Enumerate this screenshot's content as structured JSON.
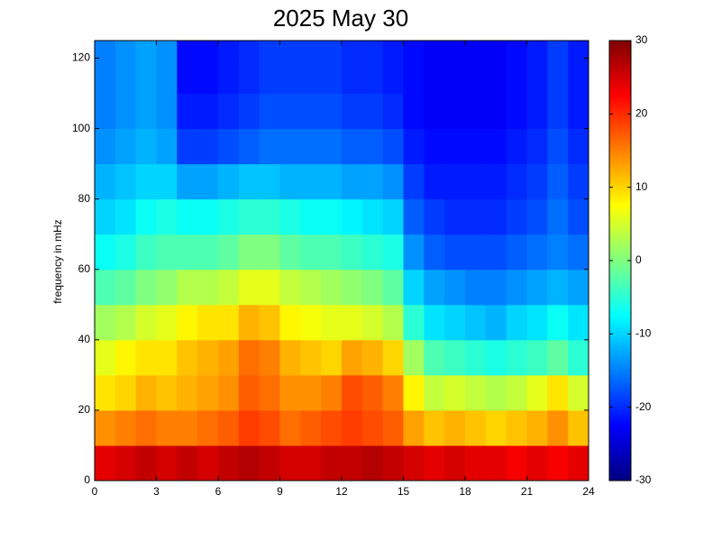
{
  "chart_data": {
    "type": "heatmap",
    "title": "2025 May 30",
    "y_label": "frequency in mHz",
    "xbins": [
      0,
      1,
      2,
      3,
      4,
      5,
      6,
      7,
      8,
      9,
      10,
      11,
      12,
      13,
      14,
      15,
      16,
      17,
      18,
      19,
      20,
      21,
      22,
      23,
      24
    ],
    "ybins": [
      0,
      10,
      20,
      30,
      40,
      50,
      60,
      70,
      80,
      90,
      100,
      110,
      120,
      125
    ],
    "values": [
      [
        24,
        25,
        26,
        25,
        26,
        25,
        26,
        27,
        26,
        25,
        25,
        26,
        26,
        27,
        26,
        25,
        24,
        25,
        24,
        24,
        23,
        24,
        23,
        24
      ],
      [
        14,
        15,
        16,
        15,
        15,
        16,
        17,
        19,
        18,
        16,
        17,
        18,
        19,
        18,
        17,
        13,
        11,
        12,
        11,
        10,
        11,
        12,
        14,
        11
      ],
      [
        9,
        10,
        12,
        11,
        12,
        13,
        14,
        17,
        16,
        14,
        14,
        15,
        18,
        17,
        15,
        8,
        4,
        5,
        4,
        3,
        4,
        6,
        9,
        5
      ],
      [
        6,
        8,
        9,
        9,
        11,
        12,
        13,
        16,
        15,
        12,
        11,
        10,
        13,
        12,
        10,
        2,
        -3,
        -4,
        -5,
        -6,
        -5,
        -4,
        -2,
        -5
      ],
      [
        2,
        3,
        5,
        6,
        8,
        9,
        9,
        12,
        11,
        8,
        7,
        6,
        6,
        5,
        3,
        -5,
        -9,
        -10,
        -11,
        -12,
        -10,
        -9,
        -7,
        -9
      ],
      [
        -3,
        -2,
        0,
        1,
        3,
        3,
        4,
        6,
        6,
        4,
        3,
        2,
        1,
        0,
        -2,
        -10,
        -13,
        -14,
        -15,
        -15,
        -14,
        -13,
        -12,
        -13
      ],
      [
        -7,
        -6,
        -4,
        -3,
        -3,
        -3,
        -2,
        0,
        0,
        -2,
        -3,
        -3,
        -4,
        -5,
        -6,
        -14,
        -17,
        -18,
        -18,
        -18,
        -17,
        -16,
        -15,
        -16
      ],
      [
        -10,
        -9,
        -7,
        -6,
        -7,
        -7,
        -6,
        -5,
        -5,
        -6,
        -7,
        -7,
        -8,
        -9,
        -10,
        -17,
        -19,
        -20,
        -20,
        -20,
        -19,
        -18,
        -16,
        -18
      ],
      [
        -12,
        -11,
        -10,
        -10,
        -13,
        -13,
        -12,
        -11,
        -11,
        -12,
        -12,
        -12,
        -13,
        -13,
        -14,
        -19,
        -21,
        -21,
        -21,
        -21,
        -20,
        -19,
        -17,
        -19
      ],
      [
        -14,
        -13,
        -12,
        -13,
        -19,
        -19,
        -18,
        -17,
        -16,
        -16,
        -16,
        -16,
        -17,
        -17,
        -18,
        -21,
        -22,
        -22,
        -22,
        -22,
        -21,
        -20,
        -18,
        -20
      ],
      [
        -15,
        -14,
        -13,
        -14,
        -21,
        -21,
        -20,
        -19,
        -18,
        -18,
        -18,
        -18,
        -19,
        -19,
        -20,
        -22,
        -23,
        -23,
        -23,
        -23,
        -22,
        -21,
        -19,
        -21
      ],
      [
        -15,
        -14,
        -13,
        -14,
        -22,
        -22,
        -21,
        -20,
        -19,
        -19,
        -19,
        -19,
        -20,
        -20,
        -21,
        -22,
        -23,
        -23,
        -23,
        -23,
        -22,
        -21,
        -19,
        -21
      ],
      [
        -15,
        -14,
        -13,
        -14,
        -22,
        -22,
        -21,
        -20,
        -19,
        -19,
        -19,
        -19,
        -20,
        -20,
        -21,
        -22,
        -23,
        -23,
        -23,
        -23,
        -22,
        -21,
        -19,
        -21
      ]
    ],
    "colormap": "jet",
    "xlim": [
      0,
      24
    ],
    "xticks": [
      0,
      3,
      6,
      9,
      12,
      15,
      18,
      21,
      24
    ],
    "ylim": [
      0,
      125
    ],
    "yticks": [
      0,
      20,
      40,
      60,
      80,
      100,
      120
    ],
    "clim": [
      -30,
      30
    ],
    "cticks": [
      -30,
      -20,
      -10,
      0,
      10,
      20,
      30
    ]
  }
}
